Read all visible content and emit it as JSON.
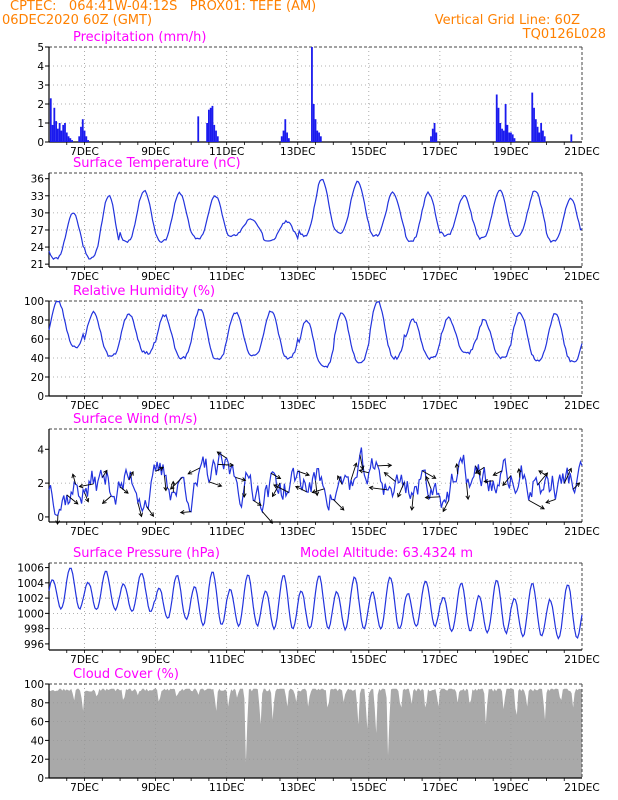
{
  "header": {
    "line1_left": "CPTEC:   064:41W-04:12S   PROX01: TEFE (AM)",
    "line2_left": "06DEC2020 60Z (GMT)",
    "line1_right": "Vertical Grid Line: 60Z",
    "line2_right": "TQ0126L028"
  },
  "colors": {
    "header": "#ff8000",
    "title": "#ff00ff",
    "line": "#2233dd",
    "bar": "#1a1aee",
    "cloud": "#a9a9a9",
    "grid": "#999999"
  },
  "x_axis": {
    "labels": [
      "7DEC",
      "9DEC",
      "11DEC",
      "13DEC",
      "15DEC",
      "17DEC",
      "19DEC",
      "21DEC"
    ],
    "start_day": 6.0,
    "end_day": 21.0
  },
  "chart_data": [
    {
      "type": "bar",
      "title": "Precipitation (mm/h)",
      "ylim": [
        0,
        5
      ],
      "yticks": [
        0,
        1,
        2,
        3,
        4,
        5
      ],
      "samples": [
        [
          6.05,
          2.3
        ],
        [
          6.1,
          0.9
        ],
        [
          6.15,
          1.8
        ],
        [
          6.2,
          1.1
        ],
        [
          6.25,
          0.7
        ],
        [
          6.3,
          1.0
        ],
        [
          6.35,
          0.6
        ],
        [
          6.4,
          0.9
        ],
        [
          6.45,
          1.0
        ],
        [
          6.5,
          0.5
        ],
        [
          6.55,
          0.3
        ],
        [
          6.6,
          0.2
        ],
        [
          6.65,
          0.1
        ],
        [
          6.85,
          0.3
        ],
        [
          6.9,
          0.8
        ],
        [
          6.95,
          1.2
        ],
        [
          7.0,
          0.6
        ],
        [
          7.05,
          0.3
        ],
        [
          7.1,
          0.1
        ],
        [
          10.2,
          1.35
        ],
        [
          10.45,
          1.0
        ],
        [
          10.5,
          1.7
        ],
        [
          10.55,
          1.8
        ],
        [
          10.6,
          1.9
        ],
        [
          10.65,
          0.9
        ],
        [
          10.7,
          0.6
        ],
        [
          10.75,
          0.3
        ],
        [
          12.55,
          0.3
        ],
        [
          12.6,
          0.6
        ],
        [
          12.65,
          1.2
        ],
        [
          12.7,
          0.5
        ],
        [
          12.75,
          0.2
        ],
        [
          13.4,
          5.0
        ],
        [
          13.45,
          2.0
        ],
        [
          13.5,
          1.2
        ],
        [
          13.55,
          0.6
        ],
        [
          13.6,
          0.5
        ],
        [
          13.65,
          0.3
        ],
        [
          16.75,
          0.3
        ],
        [
          16.8,
          0.7
        ],
        [
          16.85,
          1.0
        ],
        [
          16.9,
          0.5
        ],
        [
          18.6,
          2.5
        ],
        [
          18.65,
          1.8
        ],
        [
          18.7,
          1.0
        ],
        [
          18.75,
          0.7
        ],
        [
          18.8,
          0.6
        ],
        [
          18.85,
          2.0
        ],
        [
          18.9,
          0.9
        ],
        [
          18.95,
          0.5
        ],
        [
          19.0,
          0.5
        ],
        [
          19.05,
          0.4
        ],
        [
          19.1,
          0.2
        ],
        [
          19.6,
          2.6
        ],
        [
          19.65,
          1.8
        ],
        [
          19.7,
          1.2
        ],
        [
          19.75,
          0.8
        ],
        [
          19.8,
          0.5
        ],
        [
          19.85,
          1.0
        ],
        [
          19.9,
          0.6
        ],
        [
          19.95,
          0.3
        ],
        [
          20.7,
          0.4
        ]
      ]
    },
    {
      "type": "line",
      "title": "Surface Temperature (nC)",
      "ylim": [
        20.5,
        37
      ],
      "yticks": [
        21,
        24,
        27,
        30,
        33,
        36
      ],
      "daily_max": [
        30,
        33,
        34,
        33.5,
        33,
        29,
        28.5,
        36,
        35.5,
        33.5,
        33.5,
        33,
        34,
        34,
        32.5,
        34
      ],
      "daily_min": [
        22,
        22,
        25,
        25,
        25.5,
        26,
        25,
        26,
        26.5,
        26,
        25,
        26,
        25.5,
        26,
        25,
        25.5
      ]
    },
    {
      "type": "line",
      "title": "Relative Humidity (%)",
      "ylim": [
        0,
        100
      ],
      "yticks": [
        0,
        20,
        40,
        60,
        80,
        100
      ],
      "daily_max": [
        100,
        88,
        87,
        85,
        92,
        88,
        90,
        80,
        88,
        100,
        80,
        82,
        80,
        88,
        87,
        88
      ],
      "daily_min": [
        52,
        42,
        45,
        40,
        38,
        42,
        40,
        30,
        36,
        40,
        40,
        45,
        40,
        38,
        36,
        35
      ]
    },
    {
      "type": "line",
      "title": "Surface Wind (m/s)",
      "ylim": [
        -0.3,
        5.2
      ],
      "yticks": [
        0,
        2,
        4
      ]
    },
    {
      "type": "line",
      "title": "Surface Pressure (hPa)",
      "annotation": "Model Altitude: 63.4324 m",
      "ylim": [
        995.2,
        1006.6
      ],
      "yticks": [
        996,
        998,
        1000,
        1002,
        1004,
        1006
      ],
      "daily_peak_high": [
        1006,
        1005.5,
        1005.3,
        1005,
        1005.5,
        1005,
        1005,
        1005,
        1004.8,
        1004.8,
        1004.3,
        1004,
        1004.3,
        1004,
        1003.8
      ],
      "daily_trough_low": [
        999.8,
        999.8,
        999.5,
        998.5,
        997.5,
        997.5,
        997,
        997,
        997,
        997,
        997.5,
        996.8,
        996.5,
        996,
        995.8
      ]
    },
    {
      "type": "area",
      "title": "Cloud Cover (%)",
      "ylim": [
        0,
        100
      ],
      "yticks": [
        0,
        20,
        40,
        60,
        80,
        100
      ],
      "baseline": 95,
      "dips": [
        [
          6.7,
          82
        ],
        [
          6.95,
          70
        ],
        [
          7.35,
          85
        ],
        [
          8.1,
          80
        ],
        [
          8.5,
          88
        ],
        [
          9.1,
          78
        ],
        [
          9.6,
          85
        ],
        [
          10.2,
          88
        ],
        [
          10.7,
          70
        ],
        [
          11.05,
          75
        ],
        [
          11.3,
          85
        ],
        [
          11.55,
          12
        ],
        [
          11.95,
          55
        ],
        [
          12.3,
          60
        ],
        [
          12.7,
          75
        ],
        [
          12.95,
          80
        ],
        [
          13.3,
          75
        ],
        [
          13.85,
          70
        ],
        [
          14.3,
          80
        ],
        [
          14.7,
          55
        ],
        [
          14.95,
          50
        ],
        [
          15.2,
          45
        ],
        [
          15.55,
          20
        ],
        [
          15.9,
          70
        ],
        [
          16.2,
          78
        ],
        [
          16.6,
          70
        ],
        [
          16.95,
          75
        ],
        [
          17.5,
          80
        ],
        [
          17.85,
          75
        ],
        [
          18.3,
          55
        ],
        [
          18.8,
          72
        ],
        [
          19.15,
          60
        ],
        [
          19.45,
          75
        ],
        [
          19.95,
          60
        ],
        [
          20.4,
          80
        ],
        [
          20.75,
          75
        ]
      ]
    }
  ]
}
